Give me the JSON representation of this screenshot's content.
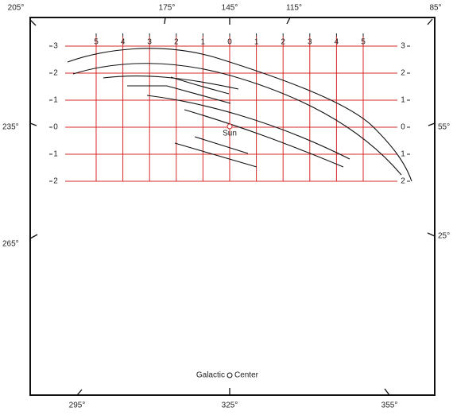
{
  "outer_labels": {
    "top": [
      "205°",
      "175°",
      "145°",
      "115°",
      "85°"
    ],
    "left": [
      "235°",
      "265°"
    ],
    "right": [
      "55°",
      "25°"
    ],
    "bottom": [
      "295°",
      "325°",
      "355°"
    ]
  },
  "grid_labels": {
    "columns": [
      "5",
      "4",
      "3",
      "2",
      "1",
      "0",
      "1",
      "2",
      "3",
      "4",
      "5"
    ],
    "rows": [
      "3",
      "2",
      "1",
      "0",
      "1",
      "2"
    ]
  },
  "sun_label": "Sun",
  "center_label": {
    "left": "Galactic",
    "right": "Center"
  }
}
